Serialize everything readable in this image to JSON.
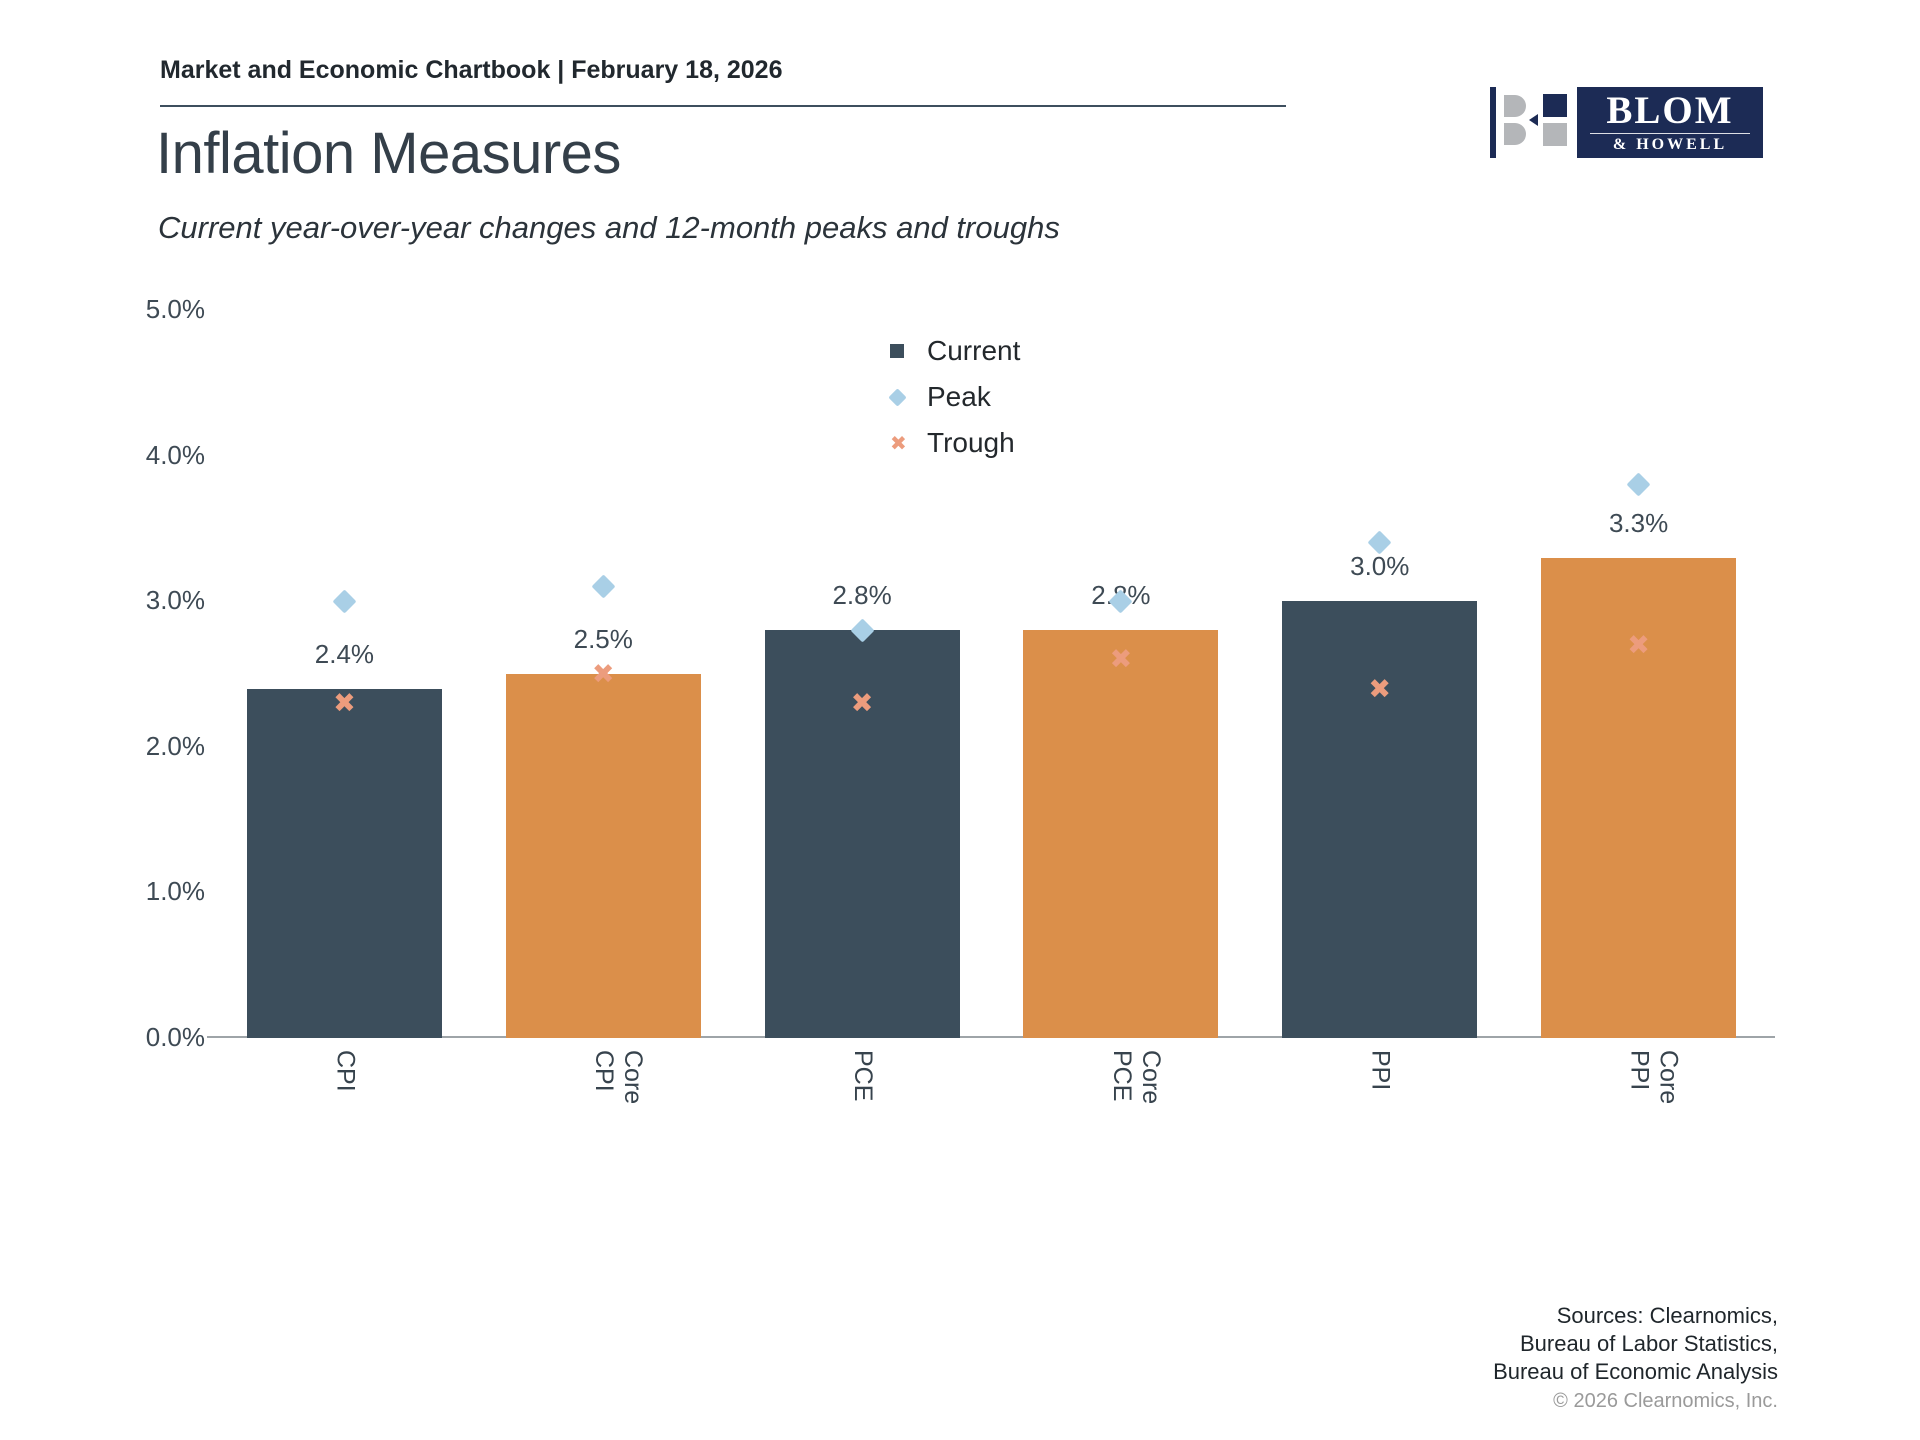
{
  "page": {
    "header": {
      "breadcrumb": "Market and Economic Chartbook | February 18, 2026"
    },
    "title": "Inflation Measures",
    "subtitle": "Current year-over-year changes and 12-month peaks and troughs",
    "logo": {
      "name": "BLOM",
      "subname": "& HOWELL",
      "navy": "#1c2b55",
      "gray": "#b4b6b9"
    },
    "footer": {
      "sources_lines": [
        "Sources: Clearnomics,",
        "Bureau of Labor Statistics,",
        "Bureau of Economic Analysis"
      ],
      "copyright": "© 2026 Clearnomics, Inc."
    }
  },
  "chart_data": {
    "type": "bar",
    "title": "Inflation Measures",
    "subtitle": "Current year-over-year changes and 12-month peaks and troughs",
    "categories": [
      "CPI",
      "Core CPI",
      "PCE",
      "Core PCE",
      "PPI",
      "Core PPI"
    ],
    "series": [
      {
        "name": "Current",
        "marker": "square",
        "values": [
          2.4,
          2.5,
          2.8,
          2.8,
          3.0,
          3.3
        ]
      },
      {
        "name": "Peak",
        "marker": "diamond",
        "values": [
          3.0,
          3.1,
          2.8,
          3.0,
          3.4,
          3.8
        ]
      },
      {
        "name": "Trough",
        "marker": "x",
        "values": [
          2.3,
          2.5,
          2.3,
          2.6,
          2.4,
          2.7
        ]
      }
    ],
    "bar_labels": [
      "2.4%",
      "2.5%",
      "2.8%",
      "2.8%",
      "3.0%",
      "3.3%"
    ],
    "bar_colors": [
      "#3c4e5c",
      "#db8f4a",
      "#3c4e5c",
      "#db8f4a",
      "#3c4e5c",
      "#db8f4a"
    ],
    "y_ticks": [
      "0.0%",
      "1.0%",
      "2.0%",
      "3.0%",
      "4.0%",
      "5.0%"
    ],
    "ylim": [
      0,
      5
    ],
    "grid": false,
    "legend_position": "upper middle",
    "legend": [
      {
        "label": "Current",
        "marker": "square",
        "color": "#3c4e5c"
      },
      {
        "label": "Peak",
        "marker": "diamond",
        "color": "#a9cfe6"
      },
      {
        "label": "Trough",
        "marker": "x",
        "color": "#ec9c7d"
      }
    ],
    "marker_colors": {
      "peak": "#a9cfe6",
      "trough": "#ec9c7d"
    },
    "x_marker_glyph": "✖"
  }
}
